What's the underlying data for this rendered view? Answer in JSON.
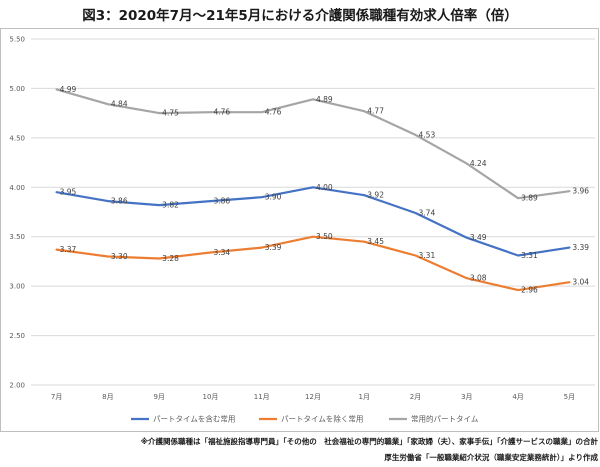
{
  "title": "図3：2020年7月～21年5月における介護関係職種有効求人倍率（倍）",
  "chart_data": {
    "type": "line",
    "title": "図3：2020年7月～21年5月における介護関係職種有効求人倍率（倍）",
    "categories": [
      "7月",
      "8月",
      "9月",
      "10月",
      "11月",
      "12月",
      "1月",
      "2月",
      "3月",
      "4月",
      "5月"
    ],
    "yticks": [
      "2.00",
      "2.50",
      "3.00",
      "3.50",
      "4.00",
      "4.50",
      "5.00",
      "5.50"
    ],
    "ylim": [
      2.0,
      5.5
    ],
    "grid": true,
    "legend_position": "bottom",
    "series": [
      {
        "name": "パートタイムを含む常用",
        "color": "#4472C4",
        "values": [
          3.95,
          3.86,
          3.82,
          3.86,
          3.9,
          4.0,
          3.92,
          3.74,
          3.49,
          3.31,
          3.39
        ],
        "labels": [
          "3.95",
          "3.86",
          "3.82",
          "3.86",
          "3.90",
          "4.00",
          "3.92",
          "3.74",
          "3.49",
          "3.31",
          "3.39"
        ]
      },
      {
        "name": "パートタイムを除く常用",
        "color": "#ED7D31",
        "values": [
          3.37,
          3.3,
          3.28,
          3.34,
          3.39,
          3.5,
          3.45,
          3.31,
          3.08,
          2.96,
          3.04
        ],
        "labels": [
          "3.37",
          "3.30",
          "3.28",
          "3.34",
          "3.39",
          "3.50",
          "3.45",
          "3.31",
          "3.08",
          "2.96",
          "3.04"
        ]
      },
      {
        "name": "常用的パートタイム",
        "color": "#A5A5A5",
        "values": [
          4.99,
          4.84,
          4.75,
          4.76,
          4.76,
          4.89,
          4.77,
          4.53,
          4.24,
          3.89,
          3.96
        ],
        "labels": [
          "4.99",
          "4.84",
          "4.75",
          "4.76",
          "4.76",
          "4.89",
          "4.77",
          "4.53",
          "4.24",
          "3.89",
          "3.96"
        ]
      }
    ]
  },
  "notes": {
    "line1": "※介護関係職種は「福祉施設指導専門員」「その他の　社会福祉の専門的職業」「家政婦（夫）、家事手伝」「介護サービスの職業」の合計",
    "line2": "厚生労働省「一般職業紹介状況（職業安定業務統計）」より作成"
  }
}
